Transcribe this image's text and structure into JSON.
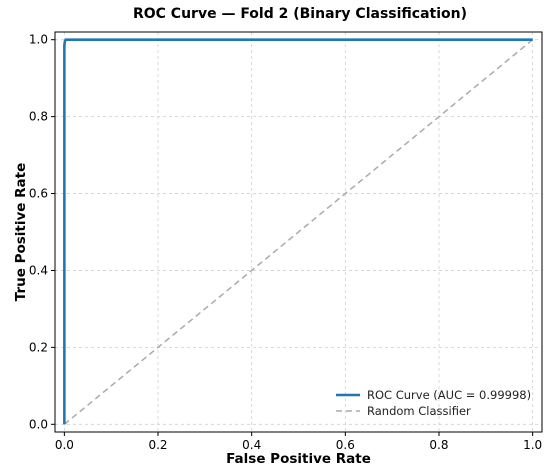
{
  "chart_data": {
    "type": "line",
    "title": "ROC Curve — Fold 2 (Binary Classification)",
    "xlabel": "False Positive Rate",
    "ylabel": "True Positive Rate",
    "xlim": [
      -0.02,
      1.02
    ],
    "ylim": [
      -0.02,
      1.02
    ],
    "x_ticks": [
      0.0,
      0.2,
      0.4,
      0.6,
      0.8,
      1.0
    ],
    "y_ticks": [
      0.0,
      0.2,
      0.4,
      0.6,
      0.8,
      1.0
    ],
    "x_tick_labels": [
      "0.0",
      "0.2",
      "0.4",
      "0.6",
      "0.8",
      "1.0"
    ],
    "y_tick_labels": [
      "0.0",
      "0.2",
      "0.4",
      "0.6",
      "0.8",
      "1.0"
    ],
    "grid": true,
    "legend_position": "lower-right",
    "series": [
      {
        "name": "ROC Curve (AUC = 0.99998)",
        "style": "solid",
        "color": "#1f77b4",
        "x": [
          0.0,
          0.0,
          0.001,
          0.003,
          1.0
        ],
        "y": [
          0.0,
          0.985,
          0.995,
          1.0,
          1.0
        ]
      },
      {
        "name": "Random Classifier",
        "style": "dashed",
        "color": "#aaaaaa",
        "x": [
          0.0,
          1.0
        ],
        "y": [
          0.0,
          1.0
        ]
      }
    ]
  }
}
